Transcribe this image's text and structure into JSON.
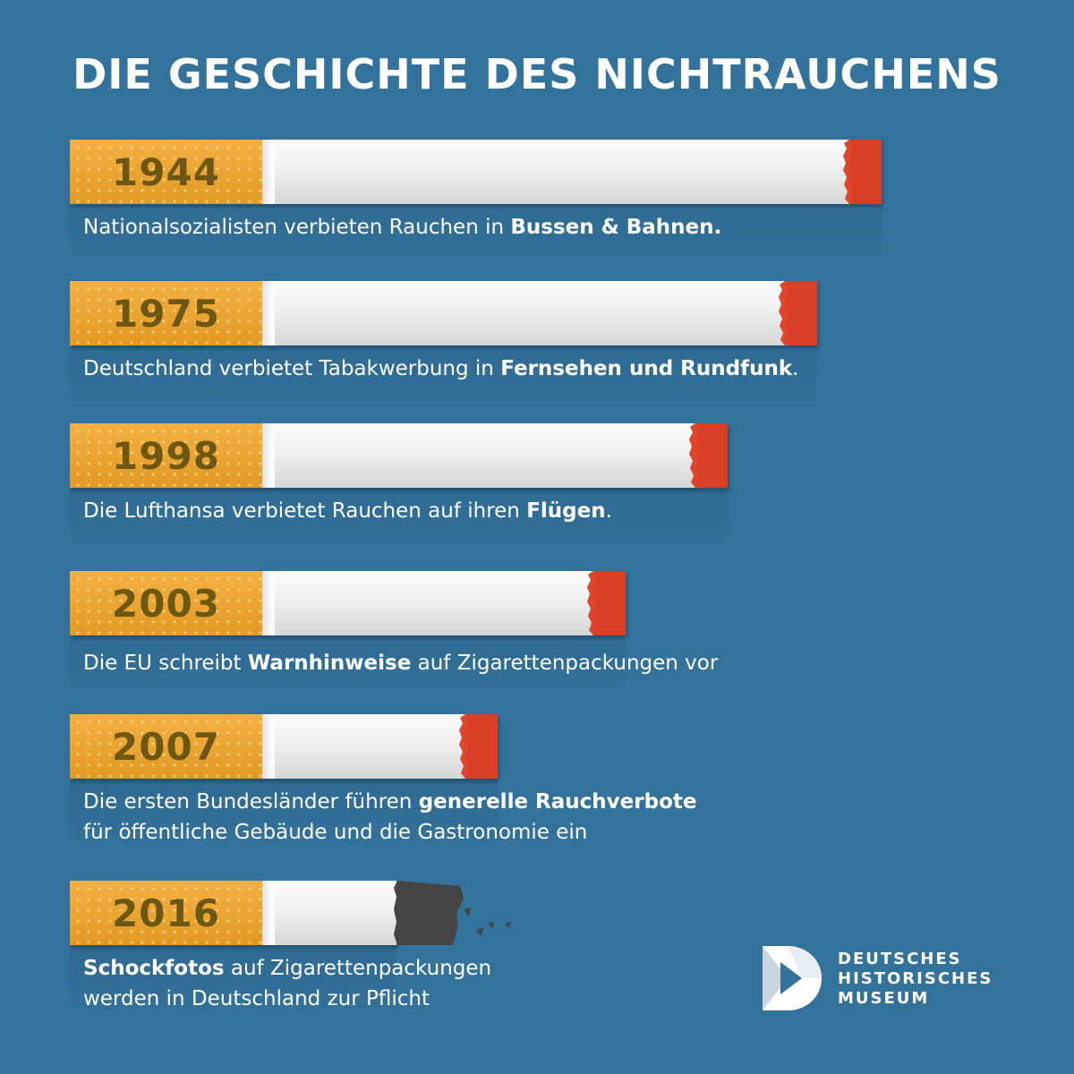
{
  "title": "DIE GESCHICHTE DES NICHTRAUCHENS",
  "colors": {
    "background": "#33729b",
    "filter": "#eca22e",
    "year_text": "#6d5712",
    "paper": "#f0f0f0",
    "ember": "#e2462a",
    "ash": "#444444"
  },
  "timeline": [
    {
      "year": "1944",
      "text_parts": [
        {
          "text": "Nationalsozialisten verbieten Rauchen in "
        },
        {
          "text": "Bussen & Bahnen."
        }
      ],
      "remaining": 1.0,
      "burnt_out": false
    },
    {
      "year": "1975",
      "text_parts": [
        {
          "text": "Deutschland verbietet Tabakwerbung in "
        },
        {
          "text": "Fernsehen und Rundfunk"
        },
        {
          "text": "."
        }
      ],
      "remaining": 0.896,
      "burnt_out": false
    },
    {
      "year": "1998",
      "text_parts": [
        {
          "text": "Die Lufthansa verbietet Rauchen auf ihren "
        },
        {
          "text": "Flügen"
        },
        {
          "text": "."
        }
      ],
      "remaining": 0.751,
      "burnt_out": false
    },
    {
      "year": "2003",
      "text_parts": [
        {
          "text": "Die EU schreibt "
        },
        {
          "text": "Warnhinweise"
        },
        {
          "text": " auf Zigarettenpackungen vor"
        }
      ],
      "remaining": 0.585,
      "burnt_out": false
    },
    {
      "year": "2007",
      "text_parts": [
        {
          "text": "Die ersten Bundesländer führen "
        },
        {
          "text": "generelle Rauchverbote"
        }
      ],
      "text_line2": "für öffentliche Gebäude und die Gastronomie ein",
      "remaining": 0.378,
      "burnt_out": false
    },
    {
      "year": "2016",
      "text_parts": [
        {
          "text": "Schockfotos"
        },
        {
          "text": " auf Zigarettenpackungen"
        }
      ],
      "text_line2": "werden in Deutschland zur Pflicht",
      "remaining": 0.24,
      "burnt_out": true
    }
  ],
  "logo": {
    "line1": "DEUTSCHES",
    "line2": "HISTORISCHES",
    "line3": "MUSEUM"
  }
}
